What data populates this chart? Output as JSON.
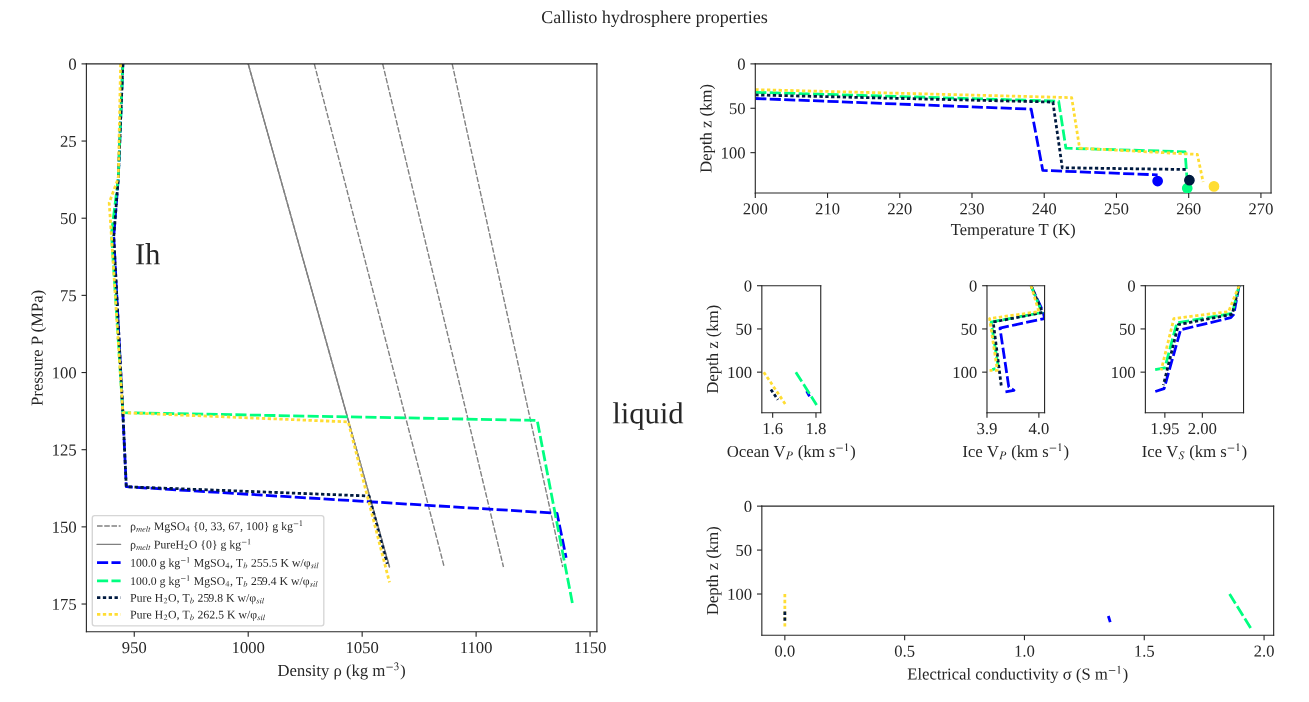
{
  "chart_data": [
    {
      "type": "line",
      "title": "Callisto hydrosphere properties",
      "xlabel": "Density ρ (kg m$^{−3}$)",
      "ylabel": "Pressure P (MPa)",
      "xlim": [
        929,
        1153
      ],
      "ylim": [
        184,
        0
      ],
      "xticks": [
        950,
        1000,
        1050,
        1100,
        1150
      ],
      "yticks": [
        0,
        25,
        50,
        75,
        100,
        125,
        150,
        175
      ],
      "legend": "bottom left",
      "annotations": [
        "Ih",
        "liquid"
      ],
      "series": [
        {
          "name": "ρ$_{melt}$ MgSO$_{4}$ {0, 33, 67, 100} g kg$^{−1}$",
          "color": "#808080",
          "line_style": "dashed",
          "x": [
            1000,
            1062
          ],
          "values": [
            0,
            163
          ]
        },
        {
          "color": "#808080",
          "line_style": "dashed",
          "x": [
            1029,
            1086
          ],
          "values": [
            0,
            163
          ]
        },
        {
          "color": "#808080",
          "line_style": "dashed",
          "x": [
            1059,
            1112
          ],
          "values": [
            0,
            163
          ]
        },
        {
          "color": "#808080",
          "line_style": "dashed",
          "x": [
            1089.5,
            1138
          ],
          "values": [
            0,
            163
          ]
        },
        {
          "name": "ρ$_{melt}$ PureH$_{2}$O {0} g kg$^{−1}$",
          "color": "#808080",
          "line_style": "solid",
          "x": [
            1000,
            1062
          ],
          "values": [
            0,
            163
          ]
        },
        {
          "name": "100.0 g kg$^{−1}$ MgSO$_{4}$, T$_{b}$ 255.5 K w/φ$_{sil}$",
          "color": "#0000ff",
          "line_style": "dashed",
          "x": [
            945,
            943,
            941,
            945,
            946.5,
            1135.5,
            1139.5
          ],
          "values": [
            0,
            37,
            56,
            113,
            137,
            145.6,
            160
          ]
        },
        {
          "name": "100.0 g kg$^{−1}$ MgSO$_{4}$, T$_{b}$ 259.4 K w/φ$_{sil}$",
          "color": "#00ff80",
          "line_style": "dashed",
          "x": [
            945,
            943,
            940,
            945,
            1126.8,
            1142.5
          ],
          "values": [
            0,
            37,
            55,
            113,
            115.5,
            175.7
          ]
        },
        {
          "name": "Pure H$_{2}$O, T$_{b}$ 259.8 K w/φ$_{sil}$",
          "color": "#001a40",
          "line_style": "dotted",
          "x": [
            945,
            943,
            941,
            945,
            946.5,
            1053,
            1061
          ],
          "values": [
            0,
            37,
            56,
            113,
            137,
            140,
            162
          ]
        },
        {
          "name": "Pure H$_{2}$O, T$_{b}$ 262.5 K w/φ$_{sil}$",
          "color": "#ffdd33",
          "line_style": "dotted",
          "x": [
            944,
            943,
            939,
            940,
            945,
            1043.9,
            1062
          ],
          "values": [
            0,
            37,
            45,
            56,
            113,
            116,
            168
          ]
        }
      ]
    },
    {
      "type": "line",
      "xlabel": "Temperature T (K)",
      "ylabel": "Depth z (km)",
      "xlim": [
        200,
        271.4
      ],
      "ylim": [
        145.5,
        0
      ],
      "xticks": [
        200,
        210,
        220,
        230,
        240,
        250,
        260,
        270
      ],
      "yticks": [
        0,
        50,
        100
      ],
      "series": [
        {
          "color": "#0000ff",
          "line_style": "dashed",
          "x": [
            200,
            238.2,
            239.8,
            255.7
          ],
          "values": [
            39,
            51,
            120,
            125
          ]
        },
        {
          "color": "#00ff80",
          "line_style": "dashed",
          "x": [
            200,
            242,
            243,
            259.5,
            259.8
          ],
          "values": [
            32,
            42,
            95,
            99,
            133
          ]
        },
        {
          "color": "#001a40",
          "line_style": "dotted",
          "x": [
            200,
            241.2,
            242.5,
            259.8
          ],
          "values": [
            35,
            43,
            117,
            119
          ]
        },
        {
          "color": "#ffdd33",
          "line_style": "dotted",
          "x": [
            200,
            243.8,
            244.9,
            261.2,
            262
          ],
          "values": [
            29,
            38,
            95,
            102,
            133
          ]
        },
        {
          "type": "scatter",
          "marker": "circle",
          "color": "#0000ff",
          "x": [
            255.7
          ],
          "values": [
            132
          ]
        },
        {
          "type": "scatter",
          "marker": "circle",
          "color": "#00ff80",
          "x": [
            259.8
          ],
          "values": [
            140
          ]
        },
        {
          "type": "scatter",
          "marker": "circle",
          "color": "#001a40",
          "x": [
            260.1
          ],
          "values": [
            131
          ]
        },
        {
          "type": "scatter",
          "marker": "circle",
          "color": "#ffdd33",
          "x": [
            263.5
          ],
          "values": [
            138
          ]
        }
      ]
    },
    {
      "type": "line",
      "xlabel": "Ocean V$_{P}$ (km s$^{−1}$)",
      "ylabel": "Depth z (km)",
      "xlim": [
        1.55,
        1.822
      ],
      "ylim": [
        147,
        0
      ],
      "xticks": [
        1.6,
        1.8
      ],
      "yticks": [
        0,
        50,
        100
      ],
      "series": [
        {
          "color": "#0000ff",
          "line_style": "dashed",
          "x": [
            1.757,
            1.77
          ],
          "values": [
            122,
            128
          ]
        },
        {
          "color": "#00ff80",
          "line_style": "dashed",
          "x": [
            1.707,
            1.803
          ],
          "values": [
            100,
            138
          ]
        },
        {
          "color": "#001a40",
          "line_style": "dotted",
          "x": [
            1.592,
            1.624
          ],
          "values": [
            120,
            132
          ]
        },
        {
          "color": "#ffdd33",
          "line_style": "dotted",
          "x": [
            1.559,
            1.661
          ],
          "values": [
            100,
            138
          ]
        }
      ]
    },
    {
      "type": "line",
      "xlabel": "Ice V$_{P}$ (km s$^{−1}$)",
      "xlim": [
        3.9,
        4.011
      ],
      "ylim": [
        147,
        0
      ],
      "xticks": [
        3.9,
        {
          "value": 4,
          "label": "4.0"
        }
      ],
      "yticks": [
        0,
        50,
        100
      ],
      "series": [
        {
          "color": "#0000ff",
          "line_style": "dashed",
          "x": [
            3.985,
            4.008,
            4.011,
            3.925,
            3.942,
            3.952,
            3.933
          ],
          "values": [
            0,
            30,
            38,
            49,
            117,
            121,
            123
          ]
        },
        {
          "color": "#00ff80",
          "line_style": "dashed",
          "x": [
            3.985,
            4.006,
            3.908,
            3.922,
            3.91
          ],
          "values": [
            0,
            31,
            42,
            95,
            97
          ]
        },
        {
          "color": "#001a40",
          "line_style": "dotted",
          "x": [
            3.985,
            4.007,
            3.912,
            3.928
          ],
          "values": [
            0,
            31,
            42,
            118
          ]
        },
        {
          "color": "#ffdd33",
          "line_style": "dotted",
          "x": [
            3.985,
            4.0,
            3.905,
            3.92,
            3.905
          ],
          "values": [
            0,
            30,
            38,
            98,
            98
          ]
        }
      ]
    },
    {
      "type": "line",
      "xlabel": "Ice V$_{S}$ (km s$^{−1}$)",
      "xlim": [
        1.924,
        2.055
      ],
      "ylim": [
        147,
        0
      ],
      "xticks": [
        1.95,
        {
          "value": 2.0,
          "label": "2.00"
        }
      ],
      "yticks": [
        0,
        50,
        100
      ],
      "series": [
        {
          "color": "#0000ff",
          "line_style": "dashed",
          "x": [
            2.049,
            2.042,
            2.038,
            1.971,
            1.949,
            1.935
          ],
          "values": [
            0,
            33,
            37,
            51,
            119,
            123
          ]
        },
        {
          "color": "#00ff80",
          "line_style": "dashed",
          "x": [
            2.049,
            2.04,
            1.966,
            1.95,
            1.937
          ],
          "values": [
            0,
            32,
            43,
            95,
            97
          ]
        },
        {
          "color": "#001a40",
          "line_style": "dotted",
          "x": [
            2.049,
            2.04,
            1.968,
            1.948
          ],
          "values": [
            0,
            33,
            45,
            115
          ]
        },
        {
          "color": "#ffdd33",
          "line_style": "dotted",
          "x": [
            2.049,
            2.035,
            1.962,
            1.945
          ],
          "values": [
            0,
            30,
            38,
            98
          ]
        }
      ]
    },
    {
      "type": "line",
      "xlabel": "Electrical conductivity σ (S m$^{−1}$)",
      "ylabel": "Depth z (km)",
      "xlim": [
        -0.096,
        2.04
      ],
      "ylim": [
        147,
        0
      ],
      "xticks": [
        {
          "value": 0,
          "label": "0.0"
        },
        0.5,
        {
          "value": 1,
          "label": "1.0"
        },
        1.5,
        {
          "value": 2,
          "label": "2.0"
        }
      ],
      "yticks": [
        0,
        50,
        100
      ],
      "series": [
        {
          "color": "#0000ff",
          "line_style": "dashed",
          "x": [
            1.35,
            1.358
          ],
          "values": [
            125,
            132
          ]
        },
        {
          "color": "#00ff80",
          "line_style": "dashed",
          "x": [
            1.856,
            1.947
          ],
          "values": [
            100,
            140
          ]
        },
        {
          "color": "#ffdd33",
          "line_style": "dotted",
          "x": [
            0,
            0
          ],
          "values": [
            100,
            137
          ]
        },
        {
          "color": "#001a40",
          "line_style": "dotted",
          "x": [
            0,
            0
          ],
          "values": [
            120,
            131
          ]
        }
      ]
    }
  ]
}
